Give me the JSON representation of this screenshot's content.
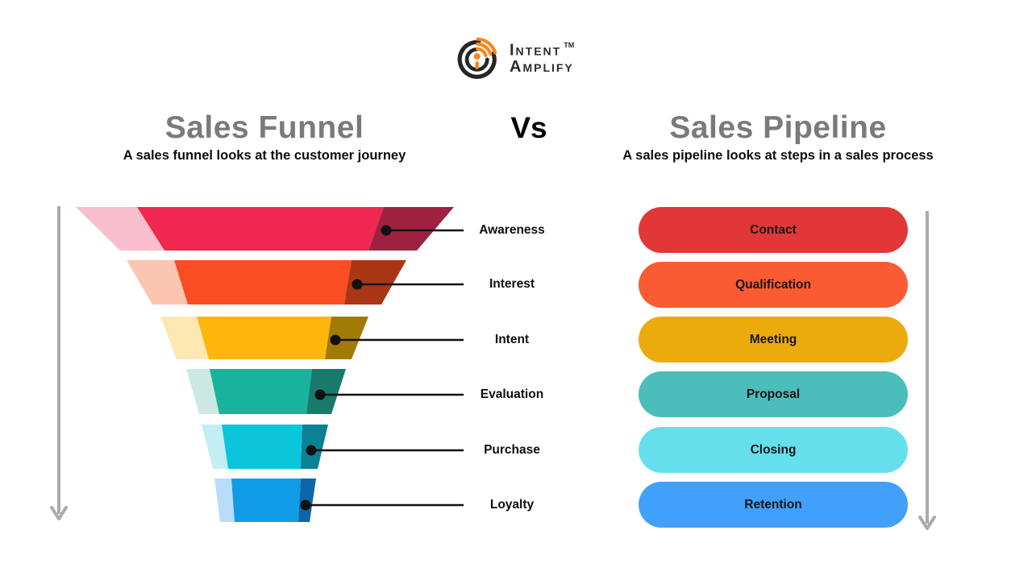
{
  "logo": {
    "line1": "Intent",
    "tm": "TM",
    "line2": "Amplify"
  },
  "left_section": {
    "title": "Sales Funnel",
    "subtitle": "A sales funnel looks at the customer journey"
  },
  "divider": {
    "vs": "Vs"
  },
  "right_section": {
    "title": "Sales Pipeline",
    "subtitle": "A sales pipeline looks at steps in a sales process"
  },
  "funnel_stages": [
    {
      "label": "Awareness",
      "color": "#F0274F",
      "light": "#F8BECE",
      "dark": "#9E2240"
    },
    {
      "label": "Interest",
      "color": "#FB4D22",
      "light": "#FCC5B1",
      "dark": "#A93716"
    },
    {
      "label": "Intent",
      "color": "#FCB70A",
      "light": "#FDE8B2",
      "dark": "#A27B07"
    },
    {
      "label": "Evaluation",
      "color": "#19B29D",
      "light": "#CBE9E2",
      "dark": "#177A6C"
    },
    {
      "label": "Purchase",
      "color": "#0BC5DB",
      "light": "#C4EEF3",
      "dark": "#0A8194"
    },
    {
      "label": "Loyalty",
      "color": "#119CE8",
      "light": "#B8DDF8",
      "dark": "#0D66A9"
    }
  ],
  "pipeline_stages": [
    {
      "label": "Contact",
      "color": "#E23737"
    },
    {
      "label": "Qualification",
      "color": "#FB5B33"
    },
    {
      "label": "Meeting",
      "color": "#EBAB0C"
    },
    {
      "label": "Proposal",
      "color": "#4BBDBB"
    },
    {
      "label": "Closing",
      "color": "#66DFED"
    },
    {
      "label": "Retention",
      "color": "#41A0FB"
    }
  ],
  "colors": {
    "title_gray": "#7A7A7A",
    "arrow_gray": "#ABABAB",
    "connector_black": "#111111",
    "logo_orange": "#F6871F",
    "logo_black": "#262626"
  }
}
